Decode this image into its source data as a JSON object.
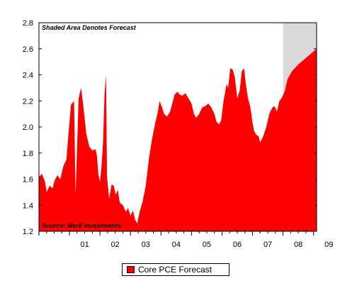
{
  "chart_data": {
    "type": "area",
    "title": "",
    "xlabel": "",
    "ylabel": "",
    "x_range": [
      2000.0,
      2009.1
    ],
    "ylim": [
      1.2,
      2.8
    ],
    "y_ticks": [
      "1.2",
      "1.4",
      "1.6",
      "1.8",
      "2.0",
      "2.2",
      "2.4",
      "2.6",
      "2.8"
    ],
    "x_ticks": [
      {
        "label": "01",
        "x": 2001.0
      },
      {
        "label": "02",
        "x": 2002.0
      },
      {
        "label": "03",
        "x": 2003.0
      },
      {
        "label": "04",
        "x": 2004.0
      },
      {
        "label": "05",
        "x": 2005.0
      },
      {
        "label": "06",
        "x": 2006.0
      },
      {
        "label": "07",
        "x": 2007.0
      },
      {
        "label": "08",
        "x": 2008.0
      },
      {
        "label": "09",
        "x": 2009.0
      }
    ],
    "annotations": {
      "top_left": "Shaded Area Denotes Forecast",
      "bottom_left": "Source: Merk Investments"
    },
    "forecast_shade": {
      "x_start": 2008.0,
      "x_end": 2009.1
    },
    "grid": false,
    "legend_position": "bottom-center",
    "series": [
      {
        "name": "Core PCE Forecast",
        "color": "#ff0000",
        "points": [
          [
            2000.0,
            1.62
          ],
          [
            2000.1,
            1.64
          ],
          [
            2000.2,
            1.58
          ],
          [
            2000.25,
            1.5
          ],
          [
            2000.35,
            1.55
          ],
          [
            2000.45,
            1.53
          ],
          [
            2000.5,
            1.58
          ],
          [
            2000.6,
            1.63
          ],
          [
            2000.7,
            1.6
          ],
          [
            2000.8,
            1.7
          ],
          [
            2000.9,
            1.75
          ],
          [
            2000.95,
            1.9
          ],
          [
            2001.05,
            2.17
          ],
          [
            2001.15,
            2.2
          ],
          [
            2001.2,
            1.48
          ],
          [
            2001.3,
            2.22
          ],
          [
            2001.38,
            2.3
          ],
          [
            2001.45,
            2.17
          ],
          [
            2001.55,
            1.95
          ],
          [
            2001.65,
            1.85
          ],
          [
            2001.75,
            1.82
          ],
          [
            2001.85,
            1.83
          ],
          [
            2001.9,
            1.78
          ],
          [
            2001.95,
            1.63
          ],
          [
            2002.0,
            1.58
          ],
          [
            2002.05,
            1.7
          ],
          [
            2002.1,
            1.88
          ],
          [
            2002.15,
            2.25
          ],
          [
            2002.2,
            2.4
          ],
          [
            2002.23,
            1.62
          ],
          [
            2002.3,
            1.45
          ],
          [
            2002.38,
            1.56
          ],
          [
            2002.45,
            1.55
          ],
          [
            2002.52,
            1.48
          ],
          [
            2002.58,
            1.52
          ],
          [
            2002.65,
            1.42
          ],
          [
            2002.75,
            1.4
          ],
          [
            2002.85,
            1.35
          ],
          [
            2002.92,
            1.38
          ],
          [
            2003.0,
            1.32
          ],
          [
            2003.08,
            1.36
          ],
          [
            2003.15,
            1.29
          ],
          [
            2003.22,
            1.26
          ],
          [
            2003.3,
            1.35
          ],
          [
            2003.4,
            1.43
          ],
          [
            2003.5,
            1.55
          ],
          [
            2003.6,
            1.75
          ],
          [
            2003.7,
            1.9
          ],
          [
            2003.8,
            2.02
          ],
          [
            2003.9,
            2.12
          ],
          [
            2003.95,
            2.2
          ],
          [
            2004.05,
            2.14
          ],
          [
            2004.1,
            2.1
          ],
          [
            2004.2,
            2.08
          ],
          [
            2004.3,
            2.12
          ],
          [
            2004.45,
            2.25
          ],
          [
            2004.55,
            2.27
          ],
          [
            2004.6,
            2.25
          ],
          [
            2004.7,
            2.24
          ],
          [
            2004.8,
            2.26
          ],
          [
            2004.9,
            2.22
          ],
          [
            2005.0,
            2.18
          ],
          [
            2005.08,
            2.1
          ],
          [
            2005.15,
            2.07
          ],
          [
            2005.25,
            2.1
          ],
          [
            2005.35,
            2.15
          ],
          [
            2005.45,
            2.16
          ],
          [
            2005.55,
            2.18
          ],
          [
            2005.65,
            2.15
          ],
          [
            2005.75,
            2.1
          ],
          [
            2005.82,
            2.04
          ],
          [
            2005.9,
            2.02
          ],
          [
            2005.97,
            2.05
          ],
          [
            2006.05,
            2.2
          ],
          [
            2006.15,
            2.33
          ],
          [
            2006.2,
            2.3
          ],
          [
            2006.27,
            2.45
          ],
          [
            2006.35,
            2.44
          ],
          [
            2006.42,
            2.38
          ],
          [
            2006.5,
            2.22
          ],
          [
            2006.58,
            2.28
          ],
          [
            2006.65,
            2.43
          ],
          [
            2006.72,
            2.45
          ],
          [
            2006.78,
            2.33
          ],
          [
            2006.85,
            2.22
          ],
          [
            2006.9,
            2.18
          ],
          [
            2006.95,
            2.12
          ],
          [
            2007.0,
            2.03
          ],
          [
            2007.05,
            1.97
          ],
          [
            2007.12,
            1.94
          ],
          [
            2007.2,
            1.93
          ],
          [
            2007.25,
            1.88
          ],
          [
            2007.35,
            1.93
          ],
          [
            2007.45,
            2.0
          ],
          [
            2007.55,
            2.1
          ],
          [
            2007.65,
            2.15
          ],
          [
            2007.72,
            2.16
          ],
          [
            2007.8,
            2.12
          ],
          [
            2007.88,
            2.2
          ],
          [
            2007.95,
            2.22
          ],
          [
            2008.05,
            2.27
          ],
          [
            2008.15,
            2.37
          ],
          [
            2008.3,
            2.43
          ],
          [
            2008.5,
            2.48
          ],
          [
            2008.7,
            2.52
          ],
          [
            2008.9,
            2.56
          ],
          [
            2009.1,
            2.6
          ]
        ]
      }
    ]
  }
}
